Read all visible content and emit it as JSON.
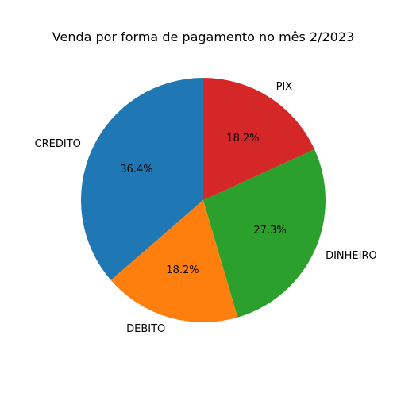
{
  "chart_data": {
    "type": "pie",
    "title": "Venda por forma de pagamento no mês 2/2023",
    "categories": [
      "CREDITO",
      "DEBITO",
      "DINHEIRO",
      "PIX"
    ],
    "values": [
      36.4,
      18.2,
      27.3,
      18.2
    ],
    "value_labels": [
      "36.4%",
      "18.2%",
      "27.3%",
      "18.2%"
    ],
    "colors": [
      "#1f77b4",
      "#ff7f0e",
      "#2ca02c",
      "#d62728"
    ],
    "start_angle_deg": 90,
    "direction": "counterclockwise",
    "legend": "none"
  }
}
